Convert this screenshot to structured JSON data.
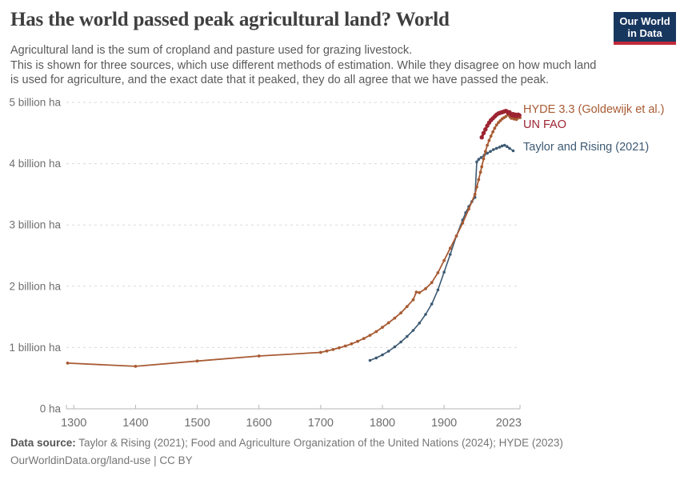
{
  "header": {
    "title": "Has the world passed peak agricultural land? World",
    "logo": {
      "line1": "Our World",
      "line2": "in Data"
    }
  },
  "subtitle": {
    "line1": "Agricultural land is the sum of cropland and pasture used for grazing livestock.",
    "rest": "This is shown for three sources, which use different methods of estimation. While they disagree on how much land is used for agriculture, and the exact date that it peaked, they do all agree that we have passed the peak."
  },
  "footer": {
    "datasource_label": "Data source:",
    "datasource_text": " Taylor & Rising (2021); Food and Agriculture Organization of the United Nations (2024); HYDE (2023)",
    "license_line": "OurWorldinData.org/land-use | CC BY"
  },
  "colors": {
    "logo_bg": "#18375F",
    "logo_accent": "#C0293A",
    "grid": "#DADADA",
    "axis": "#B5B5B5",
    "tick_label": "#6E6E6E",
    "title": "#3F3F3F",
    "subtitle": "#5A5A5A",
    "footer": "#757575"
  },
  "chart_data": {
    "type": "line",
    "title": "Has the world passed peak agricultural land? World",
    "xlabel": "",
    "ylabel": "billion ha",
    "x_range": [
      1288,
      2023
    ],
    "y_range": [
      0,
      5
    ],
    "grid": "horizontal-dashed",
    "legend_position": "right-of-line-ends",
    "x_ticks": [
      1300,
      1400,
      1500,
      1600,
      1700,
      1800,
      1900,
      2023
    ],
    "y_ticks": [
      {
        "v": 0,
        "label": "0 ha"
      },
      {
        "v": 1,
        "label": "1 billion ha"
      },
      {
        "v": 2,
        "label": "2 billion ha"
      },
      {
        "v": 3,
        "label": "3 billion ha"
      },
      {
        "v": 4,
        "label": "4 billion ha"
      },
      {
        "v": 5,
        "label": "5 billion ha"
      }
    ],
    "series": [
      {
        "id": "taylor",
        "name": "Taylor and Rising (2021)",
        "color": "#3D5A73",
        "unit": "billion ha",
        "points": [
          [
            1780,
            0.79
          ],
          [
            1790,
            0.83
          ],
          [
            1800,
            0.88
          ],
          [
            1810,
            0.94
          ],
          [
            1820,
            1.01
          ],
          [
            1830,
            1.09
          ],
          [
            1840,
            1.18
          ],
          [
            1850,
            1.28
          ],
          [
            1860,
            1.4
          ],
          [
            1870,
            1.54
          ],
          [
            1880,
            1.71
          ],
          [
            1890,
            1.94
          ],
          [
            1900,
            2.23
          ],
          [
            1910,
            2.52
          ],
          [
            1920,
            2.82
          ],
          [
            1930,
            3.08
          ],
          [
            1935,
            3.2
          ],
          [
            1940,
            3.3
          ],
          [
            1945,
            3.38
          ],
          [
            1950,
            3.45
          ],
          [
            1953,
            4.03
          ],
          [
            1956,
            4.07
          ],
          [
            1960,
            4.1
          ],
          [
            1965,
            4.14
          ],
          [
            1970,
            4.17
          ],
          [
            1975,
            4.2
          ],
          [
            1980,
            4.23
          ],
          [
            1985,
            4.25
          ],
          [
            1990,
            4.27
          ],
          [
            1994,
            4.29
          ],
          [
            1998,
            4.3
          ],
          [
            2002,
            4.28
          ],
          [
            2006,
            4.25
          ],
          [
            2012,
            4.21
          ]
        ]
      },
      {
        "id": "hyde",
        "name": "HYDE 3.3 (Goldewijk et al.)",
        "color": "#A85B33",
        "unit": "billion ha",
        "points": [
          [
            1290,
            0.745
          ],
          [
            1400,
            0.693
          ],
          [
            1500,
            0.78
          ],
          [
            1600,
            0.862
          ],
          [
            1700,
            0.92
          ],
          [
            1710,
            0.943
          ],
          [
            1720,
            0.968
          ],
          [
            1730,
            0.995
          ],
          [
            1740,
            1.025
          ],
          [
            1750,
            1.06
          ],
          [
            1760,
            1.1
          ],
          [
            1770,
            1.148
          ],
          [
            1780,
            1.2
          ],
          [
            1790,
            1.26
          ],
          [
            1800,
            1.33
          ],
          [
            1810,
            1.403
          ],
          [
            1820,
            1.48
          ],
          [
            1830,
            1.565
          ],
          [
            1840,
            1.67
          ],
          [
            1850,
            1.78
          ],
          [
            1855,
            1.905
          ],
          [
            1860,
            1.895
          ],
          [
            1870,
            1.96
          ],
          [
            1880,
            2.06
          ],
          [
            1890,
            2.22
          ],
          [
            1900,
            2.42
          ],
          [
            1910,
            2.62
          ],
          [
            1920,
            2.82
          ],
          [
            1930,
            3.03
          ],
          [
            1940,
            3.26
          ],
          [
            1950,
            3.5
          ],
          [
            1953,
            3.62
          ],
          [
            1956,
            3.74
          ],
          [
            1959,
            3.86
          ],
          [
            1961,
            3.95
          ],
          [
            1964,
            4.08
          ],
          [
            1967,
            4.2
          ],
          [
            1970,
            4.3
          ],
          [
            1973,
            4.38
          ],
          [
            1976,
            4.45
          ],
          [
            1979,
            4.52
          ],
          [
            1982,
            4.58
          ],
          [
            1985,
            4.63
          ],
          [
            1988,
            4.67
          ],
          [
            1991,
            4.7
          ],
          [
            1994,
            4.73
          ],
          [
            1997,
            4.75
          ],
          [
            2000,
            4.77
          ],
          [
            2003,
            4.8
          ],
          [
            2005,
            4.79
          ],
          [
            2007,
            4.76
          ],
          [
            2009,
            4.74
          ],
          [
            2011,
            4.76
          ],
          [
            2013,
            4.73
          ],
          [
            2015,
            4.74
          ],
          [
            2017,
            4.72
          ],
          [
            2019,
            4.74
          ],
          [
            2021,
            4.76
          ],
          [
            2023,
            4.75
          ]
        ]
      },
      {
        "id": "fao",
        "name": "UN FAO",
        "color": "#9D2432",
        "unit": "billion ha",
        "points": [
          [
            1961,
            4.43
          ],
          [
            1964,
            4.5
          ],
          [
            1967,
            4.56
          ],
          [
            1970,
            4.62
          ],
          [
            1973,
            4.67
          ],
          [
            1976,
            4.71
          ],
          [
            1979,
            4.74
          ],
          [
            1982,
            4.77
          ],
          [
            1985,
            4.8
          ],
          [
            1988,
            4.82
          ],
          [
            1991,
            4.83
          ],
          [
            1994,
            4.84
          ],
          [
            1997,
            4.85
          ],
          [
            2000,
            4.86
          ],
          [
            2002,
            4.85
          ],
          [
            2004,
            4.83
          ],
          [
            2006,
            4.84
          ],
          [
            2008,
            4.81
          ],
          [
            2010,
            4.79
          ],
          [
            2012,
            4.81
          ],
          [
            2014,
            4.78
          ],
          [
            2016,
            4.8
          ],
          [
            2018,
            4.78
          ],
          [
            2020,
            4.8
          ],
          [
            2022,
            4.79
          ]
        ]
      }
    ],
    "legend": [
      {
        "series": "hyde",
        "label": "HYDE 3.3 (Goldewijk et al.)"
      },
      {
        "series": "fao",
        "label": "UN FAO"
      },
      {
        "series": "taylor",
        "label": "Taylor and Rising (2021)"
      }
    ]
  }
}
